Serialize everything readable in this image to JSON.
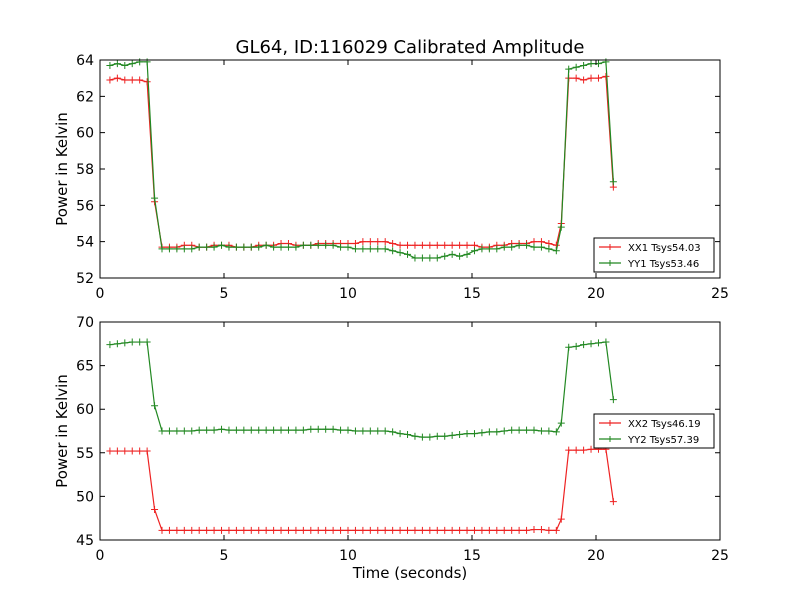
{
  "figure": {
    "title": "GL64, ID:116029 Calibrated Amplitude"
  },
  "chart_data": [
    {
      "type": "line",
      "panel": "top",
      "title": "GL64, ID:116029 Calibrated Amplitude",
      "xlabel": "",
      "ylabel": "Power in Kelvin",
      "xlim": [
        0,
        25
      ],
      "ylim": [
        52,
        64
      ],
      "xticks": [
        0,
        5,
        10,
        15,
        20,
        25
      ],
      "yticks": [
        52,
        54,
        56,
        58,
        60,
        62,
        64
      ],
      "grid": false,
      "legend_position": "lower-right",
      "x": [
        0.4,
        0.7,
        1.0,
        1.3,
        1.6,
        1.9,
        2.2,
        2.5,
        2.8,
        3.1,
        3.4,
        3.7,
        4.0,
        4.3,
        4.6,
        4.9,
        5.2,
        5.5,
        5.8,
        6.1,
        6.4,
        6.7,
        7.0,
        7.3,
        7.6,
        7.9,
        8.2,
        8.5,
        8.8,
        9.1,
        9.4,
        9.7,
        10.0,
        10.3,
        10.6,
        10.9,
        11.2,
        11.5,
        11.8,
        12.1,
        12.4,
        12.7,
        13.0,
        13.3,
        13.6,
        13.9,
        14.2,
        14.5,
        14.8,
        15.1,
        15.4,
        15.7,
        16.0,
        16.3,
        16.6,
        16.9,
        17.2,
        17.5,
        17.8,
        18.1,
        18.4,
        18.6,
        18.9,
        19.2,
        19.5,
        19.8,
        20.1,
        20.4,
        20.7
      ],
      "series": [
        {
          "name": "XX1 Tsys54.03",
          "color": "#ee2222",
          "values": [
            62.9,
            63.0,
            62.9,
            62.9,
            62.9,
            62.8,
            56.2,
            53.7,
            53.7,
            53.7,
            53.8,
            53.8,
            53.7,
            53.7,
            53.8,
            53.8,
            53.8,
            53.7,
            53.7,
            53.7,
            53.8,
            53.8,
            53.8,
            53.9,
            53.9,
            53.8,
            53.8,
            53.8,
            53.9,
            53.9,
            53.9,
            53.9,
            53.9,
            53.9,
            54.0,
            54.0,
            54.0,
            54.0,
            53.9,
            53.8,
            53.8,
            53.8,
            53.8,
            53.8,
            53.8,
            53.8,
            53.8,
            53.8,
            53.8,
            53.8,
            53.7,
            53.7,
            53.8,
            53.8,
            53.9,
            53.9,
            53.9,
            54.0,
            54.0,
            53.9,
            53.8,
            55.0,
            63.0,
            63.0,
            62.9,
            63.0,
            63.0,
            63.1,
            57.0
          ]
        },
        {
          "name": "YY1 Tsys53.46",
          "color": "#228822",
          "values": [
            63.7,
            63.8,
            63.7,
            63.8,
            63.9,
            63.9,
            56.4,
            53.6,
            53.6,
            53.6,
            53.6,
            53.6,
            53.7,
            53.7,
            53.7,
            53.8,
            53.7,
            53.7,
            53.7,
            53.7,
            53.7,
            53.8,
            53.7,
            53.7,
            53.7,
            53.7,
            53.8,
            53.8,
            53.8,
            53.8,
            53.8,
            53.7,
            53.7,
            53.6,
            53.6,
            53.6,
            53.6,
            53.6,
            53.5,
            53.4,
            53.3,
            53.1,
            53.1,
            53.1,
            53.1,
            53.2,
            53.3,
            53.2,
            53.3,
            53.5,
            53.6,
            53.6,
            53.6,
            53.7,
            53.7,
            53.8,
            53.8,
            53.7,
            53.7,
            53.6,
            53.5,
            54.8,
            63.5,
            63.6,
            63.7,
            63.8,
            63.8,
            63.9,
            57.3
          ]
        }
      ]
    },
    {
      "type": "line",
      "panel": "bottom",
      "title": "",
      "xlabel": "Time (seconds)",
      "ylabel": "Power in Kelvin",
      "xlim": [
        0,
        25
      ],
      "ylim": [
        45,
        70
      ],
      "xticks": [
        0,
        5,
        10,
        15,
        20,
        25
      ],
      "yticks": [
        45,
        50,
        55,
        60,
        65,
        70
      ],
      "grid": false,
      "legend_position": "right",
      "x": [
        0.4,
        0.7,
        1.0,
        1.3,
        1.6,
        1.9,
        2.2,
        2.5,
        2.8,
        3.1,
        3.4,
        3.7,
        4.0,
        4.3,
        4.6,
        4.9,
        5.2,
        5.5,
        5.8,
        6.1,
        6.4,
        6.7,
        7.0,
        7.3,
        7.6,
        7.9,
        8.2,
        8.5,
        8.8,
        9.1,
        9.4,
        9.7,
        10.0,
        10.3,
        10.6,
        10.9,
        11.2,
        11.5,
        11.8,
        12.1,
        12.4,
        12.7,
        13.0,
        13.3,
        13.6,
        13.9,
        14.2,
        14.5,
        14.8,
        15.1,
        15.4,
        15.7,
        16.0,
        16.3,
        16.6,
        16.9,
        17.2,
        17.5,
        17.8,
        18.1,
        18.4,
        18.6,
        18.9,
        19.2,
        19.5,
        19.8,
        20.1,
        20.4,
        20.7
      ],
      "series": [
        {
          "name": "XX2 Tsys46.19",
          "color": "#ee2222",
          "values": [
            55.2,
            55.2,
            55.2,
            55.2,
            55.2,
            55.2,
            48.5,
            46.1,
            46.1,
            46.1,
            46.1,
            46.1,
            46.1,
            46.1,
            46.1,
            46.1,
            46.1,
            46.1,
            46.1,
            46.1,
            46.1,
            46.1,
            46.1,
            46.1,
            46.1,
            46.1,
            46.1,
            46.1,
            46.1,
            46.1,
            46.1,
            46.1,
            46.1,
            46.1,
            46.1,
            46.1,
            46.1,
            46.1,
            46.1,
            46.1,
            46.1,
            46.1,
            46.1,
            46.1,
            46.1,
            46.1,
            46.1,
            46.1,
            46.1,
            46.1,
            46.1,
            46.1,
            46.1,
            46.1,
            46.1,
            46.1,
            46.1,
            46.2,
            46.2,
            46.1,
            46.1,
            47.4,
            55.3,
            55.3,
            55.3,
            55.4,
            55.4,
            55.4,
            49.4
          ]
        },
        {
          "name": "YY2 Tsys57.39",
          "color": "#228822",
          "values": [
            67.4,
            67.5,
            67.6,
            67.7,
            67.7,
            67.7,
            60.4,
            57.5,
            57.5,
            57.5,
            57.5,
            57.5,
            57.6,
            57.6,
            57.6,
            57.7,
            57.6,
            57.6,
            57.6,
            57.6,
            57.6,
            57.6,
            57.6,
            57.6,
            57.6,
            57.6,
            57.6,
            57.7,
            57.7,
            57.7,
            57.7,
            57.6,
            57.6,
            57.5,
            57.5,
            57.5,
            57.5,
            57.5,
            57.4,
            57.2,
            57.1,
            56.9,
            56.8,
            56.8,
            56.9,
            56.9,
            57.0,
            57.1,
            57.2,
            57.2,
            57.3,
            57.4,
            57.4,
            57.5,
            57.6,
            57.6,
            57.6,
            57.6,
            57.5,
            57.5,
            57.4,
            58.4,
            67.1,
            67.2,
            67.4,
            67.5,
            67.6,
            67.7,
            61.1
          ]
        }
      ]
    }
  ]
}
